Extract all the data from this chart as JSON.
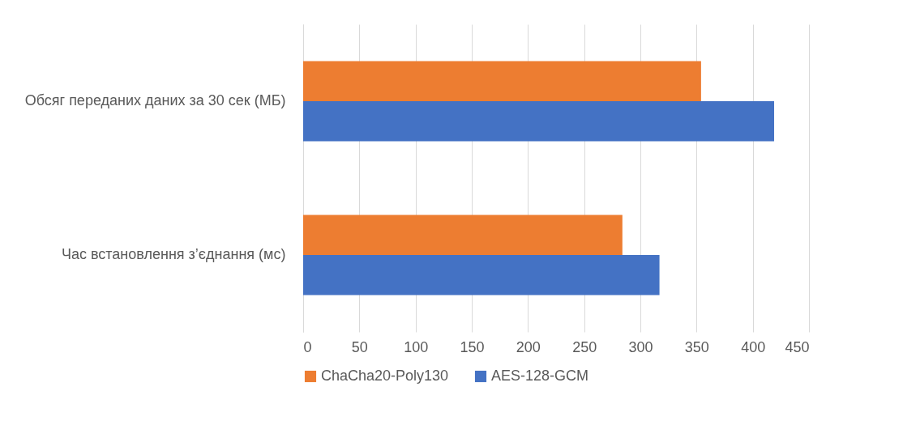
{
  "chart_data": {
    "type": "bar",
    "orientation": "horizontal",
    "categories": [
      "Обсяг переданих даних за 30 сек (МБ)",
      "Час встановлення з’єднання (мс)"
    ],
    "series": [
      {
        "name": "ChaCha20-Poly130",
        "color": "#ed7d31",
        "values": [
          354,
          284
        ]
      },
      {
        "name": "AES-128-GCM",
        "color": "#4472c4",
        "values": [
          419,
          317
        ]
      }
    ],
    "xlim": [
      0,
      450
    ],
    "xticks": [
      0,
      50,
      100,
      150,
      200,
      250,
      300,
      350,
      400,
      450
    ],
    "grid": "x",
    "legend": "bottom"
  }
}
